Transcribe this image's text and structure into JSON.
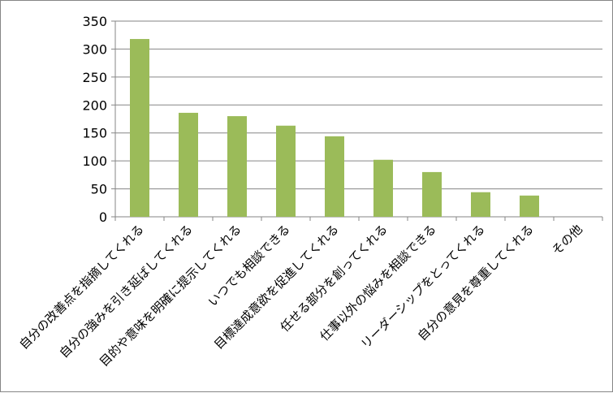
{
  "chart_data": {
    "type": "bar",
    "title": "",
    "xlabel": "",
    "ylabel": "",
    "categories": [
      "自分の改善点を指摘してくれる",
      "自分の強みを引き延ばしてくれる",
      "目的や意味を明確に提示してくれる",
      "いつでも相談できる",
      "目標達成意欲を促進してくれる",
      "任せる部分を創ってくれる",
      "仕事以外の悩みを相談できる",
      "リーダーシップをとってくれる",
      "自分の意見を尊重してくれる",
      "その他"
    ],
    "values": [
      318,
      186,
      180,
      163,
      144,
      102,
      80,
      44,
      38,
      0
    ],
    "ylim": [
      0,
      350
    ],
    "yticks": [
      "0",
      "50",
      "100",
      "150",
      "200",
      "250",
      "300",
      "350"
    ],
    "grid": true,
    "legend": "none",
    "bar_color": "#9BBB59",
    "grid_color": "#868686"
  }
}
